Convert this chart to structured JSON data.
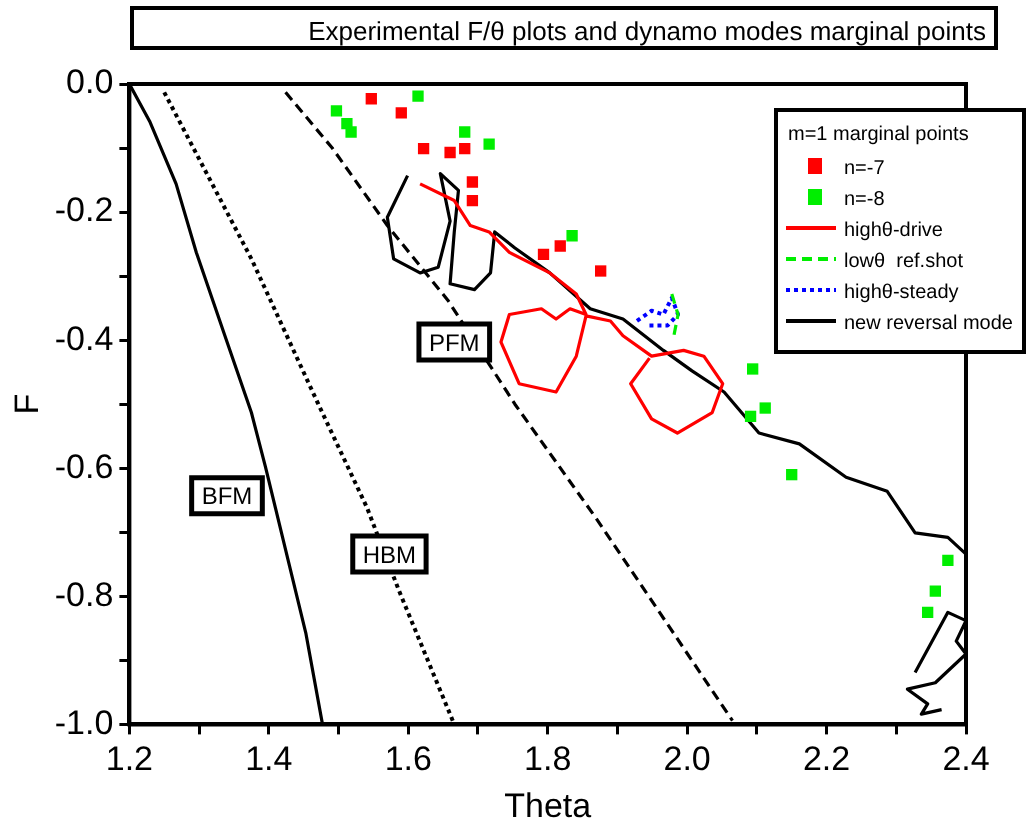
{
  "chart_data": {
    "type": "line",
    "title": "Experimental F/θ plots and dynamo modes marginal points",
    "xlabel": "Theta",
    "ylabel": "F",
    "legend_title": "m=1 marginal points",
    "legend": "top right",
    "grid": false,
    "marker": "none",
    "xlim": [
      1.2,
      2.4
    ],
    "ylim": [
      -1.0,
      0.0
    ],
    "xticks": [
      1.2,
      {
        "value": 1.3,
        "label": null
      },
      1.4,
      {
        "value": 1.5,
        "label": null
      },
      1.6,
      {
        "value": 1.7,
        "label": null
      },
      1.8,
      {
        "value": 1.9,
        "label": null
      },
      {
        "value": 2.0,
        "label": "2.0"
      },
      {
        "value": 2.1,
        "label": null
      },
      2.2,
      {
        "value": 2.3,
        "label": null
      },
      2.4
    ],
    "yticks": [
      {
        "value": -1.0,
        "label": "-1.0"
      },
      {
        "value": -0.9,
        "label": null
      },
      -0.8,
      {
        "value": -0.7,
        "label": null
      },
      -0.6,
      {
        "value": -0.5,
        "label": null
      },
      -0.4,
      {
        "value": -0.3,
        "label": null
      },
      -0.2,
      {
        "value": -0.1,
        "label": null
      },
      {
        "value": 0.0,
        "label": "0.0"
      }
    ],
    "series": [
      {
        "name": "n=-7",
        "type": "scatter",
        "marker": "square",
        "color": "#ff0000",
        "x": [
          1.547,
          1.59,
          1.622,
          1.66,
          1.681,
          1.692,
          1.692,
          1.794,
          1.818,
          1.876
        ],
        "values": [
          -0.023,
          -0.045,
          -0.101,
          -0.107,
          -0.101,
          -0.153,
          -0.182,
          -0.266,
          -0.253,
          -0.292
        ]
      },
      {
        "name": "n=-8",
        "type": "scatter",
        "marker": "square",
        "color": "#00ee00",
        "x": [
          1.497,
          1.512,
          1.518,
          1.614,
          1.681,
          1.716,
          1.835,
          2.094,
          2.112,
          2.091,
          2.15,
          2.374,
          2.356,
          2.345
        ],
        "values": [
          -0.042,
          -0.062,
          -0.075,
          -0.019,
          -0.075,
          -0.094,
          -0.237,
          -0.445,
          -0.506,
          -0.519,
          -0.61,
          -0.744,
          -0.792,
          -0.825
        ]
      },
      {
        "name": "highθ-drive",
        "color": "#ff0000",
        "line_style": "solid",
        "x": [
          1.617,
          1.666,
          1.689,
          1.716,
          1.745,
          1.803,
          1.841,
          1.855,
          1.832,
          1.812,
          1.791,
          1.745,
          1.733,
          1.759,
          1.812,
          1.841,
          1.855,
          1.89,
          1.908,
          1.949,
          1.995,
          2.024,
          2.051,
          2.036,
          1.986,
          1.949,
          1.919,
          1.946
        ],
        "values": [
          -0.156,
          -0.182,
          -0.221,
          -0.231,
          -0.263,
          -0.295,
          -0.328,
          -0.36,
          -0.351,
          -0.367,
          -0.351,
          -0.36,
          -0.403,
          -0.468,
          -0.481,
          -0.425,
          -0.362,
          -0.37,
          -0.393,
          -0.425,
          -0.416,
          -0.425,
          -0.468,
          -0.513,
          -0.545,
          -0.523,
          -0.468,
          -0.428
        ]
      },
      {
        "name": "lowθ  ref.shot",
        "color": "#00ee00",
        "line_style": "dashed",
        "x": [
          1.978,
          1.987,
          1.981
        ],
        "values": [
          -0.328,
          -0.36,
          -0.393
        ]
      },
      {
        "name": "highθ-steady",
        "color": "#0000ff",
        "line_style": "dotted",
        "x": [
          1.928,
          1.949,
          1.966,
          1.978,
          1.987,
          1.972,
          1.943
        ],
        "values": [
          -0.37,
          -0.354,
          -0.36,
          -0.334,
          -0.36,
          -0.377,
          -0.377
        ]
      },
      {
        "name": "new reversal mode",
        "color": "#000000",
        "line_style": "solid",
        "x": [
          1.599,
          1.57,
          1.579,
          1.617,
          1.643,
          1.66,
          1.646,
          1.672,
          1.666,
          1.66,
          1.695,
          1.718,
          1.724,
          1.753,
          1.803,
          1.861,
          1.908,
          1.966,
          2.007,
          2.053,
          2.103,
          2.161,
          2.228,
          2.287,
          2.327,
          2.374,
          2.4
        ],
        "values": [
          -0.143,
          -0.208,
          -0.273,
          -0.295,
          -0.286,
          -0.214,
          -0.14,
          -0.166,
          -0.231,
          -0.312,
          -0.321,
          -0.295,
          -0.231,
          -0.256,
          -0.295,
          -0.351,
          -0.367,
          -0.416,
          -0.448,
          -0.481,
          -0.545,
          -0.562,
          -0.614,
          -0.636,
          -0.701,
          -0.708,
          -0.734
        ]
      },
      {
        "color": "#000000",
        "line_style": "solid",
        "x": [
          2.327,
          2.374,
          2.4,
          2.386,
          2.4,
          2.356,
          2.316,
          2.345,
          2.336,
          2.365
        ],
        "values": [
          -0.919,
          -0.825,
          -0.838,
          -0.87,
          -0.89,
          -0.935,
          -0.945,
          -0.968,
          -0.984,
          -0.977
        ]
      },
      {
        "color": "#000000",
        "line_style": "solid",
        "x": [
          1.2,
          1.229,
          1.267,
          1.296,
          1.337,
          1.375,
          1.395,
          1.424,
          1.453,
          1.477
        ],
        "values": [
          0,
          -0.058,
          -0.156,
          -0.263,
          -0.393,
          -0.513,
          -0.597,
          -0.727,
          -0.857,
          -1.0
        ]
      },
      {
        "color": "#000000",
        "line_style": "dotted",
        "x": [
          1.25,
          1.375,
          1.471,
          1.541,
          1.587,
          1.666
        ],
        "values": [
          -0.013,
          -0.273,
          -0.5,
          -0.662,
          -0.792,
          -1.0
        ]
      },
      {
        "color": "#000000",
        "line_style": "dashed",
        "x": [
          1.424,
          1.491,
          1.57,
          1.657,
          1.753,
          1.87,
          2.065
        ],
        "values": [
          -0.013,
          -0.1,
          -0.221,
          -0.338,
          -0.5,
          -0.679,
          -0.994
        ]
      }
    ],
    "annotations": [
      {
        "text": "BFM",
        "x": 1.34,
        "y": -0.643
      },
      {
        "text": "HBM",
        "x": 1.573,
        "y": -0.734
      },
      {
        "text": "PFM",
        "x": 1.666,
        "y": -0.403
      }
    ]
  }
}
